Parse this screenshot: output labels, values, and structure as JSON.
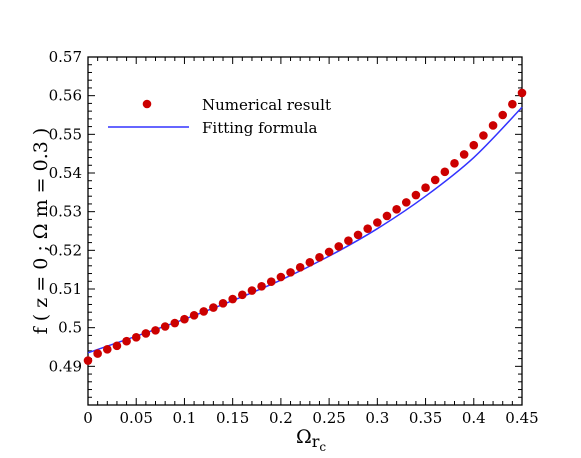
{
  "chart_data": {
    "type": "scatter",
    "title": "",
    "xlabel": "Ω",
    "xlabel_subscript": "r",
    "xlabel_subsubscript": "c",
    "ylabel": "f ( z = 0 ; Ω m = 0.3 )",
    "xlim": [
      0,
      0.45
    ],
    "ylim": [
      0.48,
      0.57
    ],
    "xticks": [
      "0",
      "0.05",
      "0.1",
      "0.15",
      "0.2",
      "0.25",
      "0.3",
      "0.35",
      "0.4",
      "0.45"
    ],
    "yticks": [
      "0.49",
      "0.5",
      "0.51",
      "0.52",
      "0.53",
      "0.54",
      "0.55",
      "0.56",
      "0.57"
    ],
    "grid": false,
    "legend_position": "top-left",
    "series": [
      {
        "name": "Numerical result",
        "style": "markers",
        "color": "#cc0000",
        "x": [
          0,
          0.01,
          0.02,
          0.03,
          0.04,
          0.05,
          0.06,
          0.07,
          0.08,
          0.09,
          0.1,
          0.11,
          0.12,
          0.13,
          0.14,
          0.15,
          0.16,
          0.17,
          0.18,
          0.19,
          0.2,
          0.21,
          0.22,
          0.23,
          0.24,
          0.25,
          0.26,
          0.27,
          0.28,
          0.29,
          0.3,
          0.31,
          0.32,
          0.33,
          0.34,
          0.35,
          0.36,
          0.37,
          0.38,
          0.39,
          0.4,
          0.41,
          0.42,
          0.43,
          0.44,
          0.45
        ],
        "y": [
          0.4915,
          0.4933,
          0.4944,
          0.4953,
          0.4965,
          0.4975,
          0.4985,
          0.4993,
          0.5003,
          0.5012,
          0.5022,
          0.5032,
          0.5042,
          0.5052,
          0.5063,
          0.5074,
          0.5085,
          0.5096,
          0.5107,
          0.5119,
          0.5131,
          0.5143,
          0.5156,
          0.5169,
          0.5182,
          0.5196,
          0.521,
          0.5225,
          0.524,
          0.5256,
          0.5272,
          0.5289,
          0.5306,
          0.5324,
          0.5343,
          0.5362,
          0.5382,
          0.5403,
          0.5425,
          0.5448,
          0.5472,
          0.5497,
          0.5523,
          0.555,
          0.5578,
          0.5607
        ]
      },
      {
        "name": "Fitting formula",
        "style": "line",
        "color": "#3333ff",
        "x": [
          0,
          0.05,
          0.1,
          0.15,
          0.2,
          0.25,
          0.3,
          0.35,
          0.4,
          0.45
        ],
        "y": [
          0.4935,
          0.4978,
          0.5022,
          0.507,
          0.5123,
          0.5185,
          0.5256,
          0.534,
          0.544,
          0.557
        ]
      }
    ]
  }
}
